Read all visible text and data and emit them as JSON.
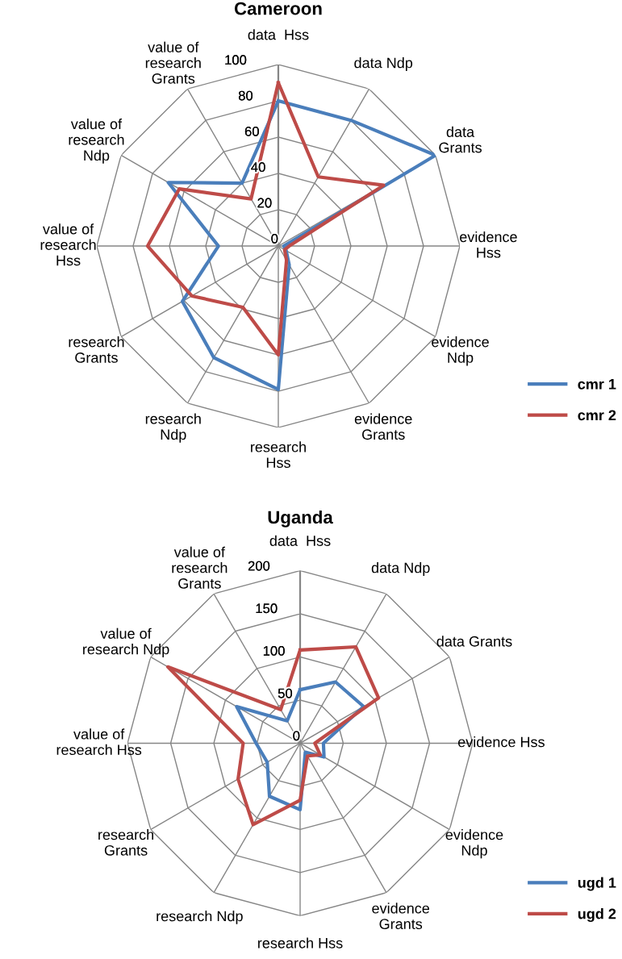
{
  "chart_data": [
    {
      "type": "radar",
      "title": "Cameroon",
      "categories": [
        "data  Hss",
        "data Ndp",
        "data\nGrants",
        "evidence\nHss",
        "evidence\nNdp",
        "evidence\nGrants",
        "research\nHss",
        "research\nNdp",
        "research\nGrants",
        "value of\nresearch\nHss",
        "value of\nresearch\nNdp",
        "value of\nresearch\nGrants"
      ],
      "ylim": [
        0,
        100
      ],
      "yticks": [
        0,
        20,
        40,
        60,
        80,
        100
      ],
      "legend": "bottom right",
      "marker": "none",
      "series": [
        {
          "name": "cmr 1",
          "color": "#4a7ebb",
          "values": [
            80,
            80,
            100,
            3,
            5,
            12,
            79,
            71,
            61,
            33,
            70,
            40
          ]
        },
        {
          "name": "cmr 2",
          "color": "#be4b48",
          "values": [
            90,
            44,
            67,
            6,
            4,
            9,
            60,
            39,
            55,
            72,
            63,
            30
          ]
        }
      ]
    },
    {
      "type": "radar",
      "title": "Uganda",
      "categories": [
        "data  Hss",
        "data Ndp",
        "data Grants",
        "evidence Hss",
        "evidence\nNdp",
        "evidence\nGrants",
        "research Hss",
        "research Ndp",
        "research\nGrants",
        "value of\nresearch Hss",
        "value of\nresearch Ndp",
        "value of\nresearch\nGrants"
      ],
      "ylim": [
        0,
        200
      ],
      "yticks": [
        0,
        50,
        100,
        150,
        200
      ],
      "legend": "bottom right",
      "marker": "none",
      "series": [
        {
          "name": "ugd 1",
          "color": "#4a7ebb",
          "values": [
            62,
            82,
            85,
            27,
            32,
            12,
            77,
            71,
            44,
            51,
            85,
            30
          ]
        },
        {
          "name": "ugd 2",
          "color": "#be4b48",
          "values": [
            108,
            129,
            105,
            17,
            27,
            17,
            66,
            109,
            83,
            66,
            177,
            45
          ]
        }
      ]
    }
  ]
}
